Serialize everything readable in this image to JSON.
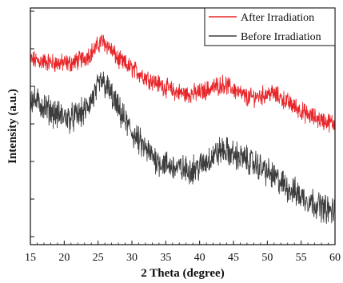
{
  "chart_data": {
    "type": "line",
    "xlabel": "2 Theta (degree)",
    "ylabel": "Intensity (a.u.)",
    "xlim": [
      15,
      60
    ],
    "xticks": [
      15,
      20,
      25,
      30,
      35,
      40,
      45,
      50,
      55,
      60
    ],
    "yticks_labeled": false,
    "grid": false,
    "legend_position": "top-right",
    "series": [
      {
        "name": "After Irradiation",
        "color": "#e8262a",
        "x": [
          15,
          17,
          19,
          21,
          23,
          24.5,
          25.5,
          26.5,
          28,
          30,
          32,
          34,
          36,
          38,
          40,
          42,
          43.5,
          45,
          47,
          49,
          50.5,
          52,
          54,
          56,
          58,
          60
        ],
        "y": [
          0.72,
          0.71,
          0.7,
          0.7,
          0.73,
          0.78,
          0.83,
          0.8,
          0.72,
          0.67,
          0.62,
          0.58,
          0.54,
          0.52,
          0.53,
          0.56,
          0.58,
          0.55,
          0.5,
          0.51,
          0.53,
          0.5,
          0.45,
          0.4,
          0.37,
          0.35
        ]
      },
      {
        "name": "Before Irradiation",
        "color": "#3d3d3d",
        "x": [
          15,
          17,
          19,
          21,
          23,
          24.5,
          25.5,
          26.5,
          28,
          30,
          32,
          34,
          36,
          38,
          40,
          41.5,
          42.5,
          43.5,
          45,
          47,
          49,
          51,
          53,
          55,
          57,
          59,
          60
        ],
        "y": [
          0.5,
          0.45,
          0.4,
          0.38,
          0.42,
          0.52,
          0.6,
          0.55,
          0.43,
          0.3,
          0.2,
          0.13,
          0.1,
          0.08,
          0.1,
          0.15,
          0.18,
          0.2,
          0.17,
          0.14,
          0.1,
          0.04,
          -0.02,
          -0.07,
          -0.11,
          -0.15,
          -0.16
        ]
      }
    ]
  }
}
